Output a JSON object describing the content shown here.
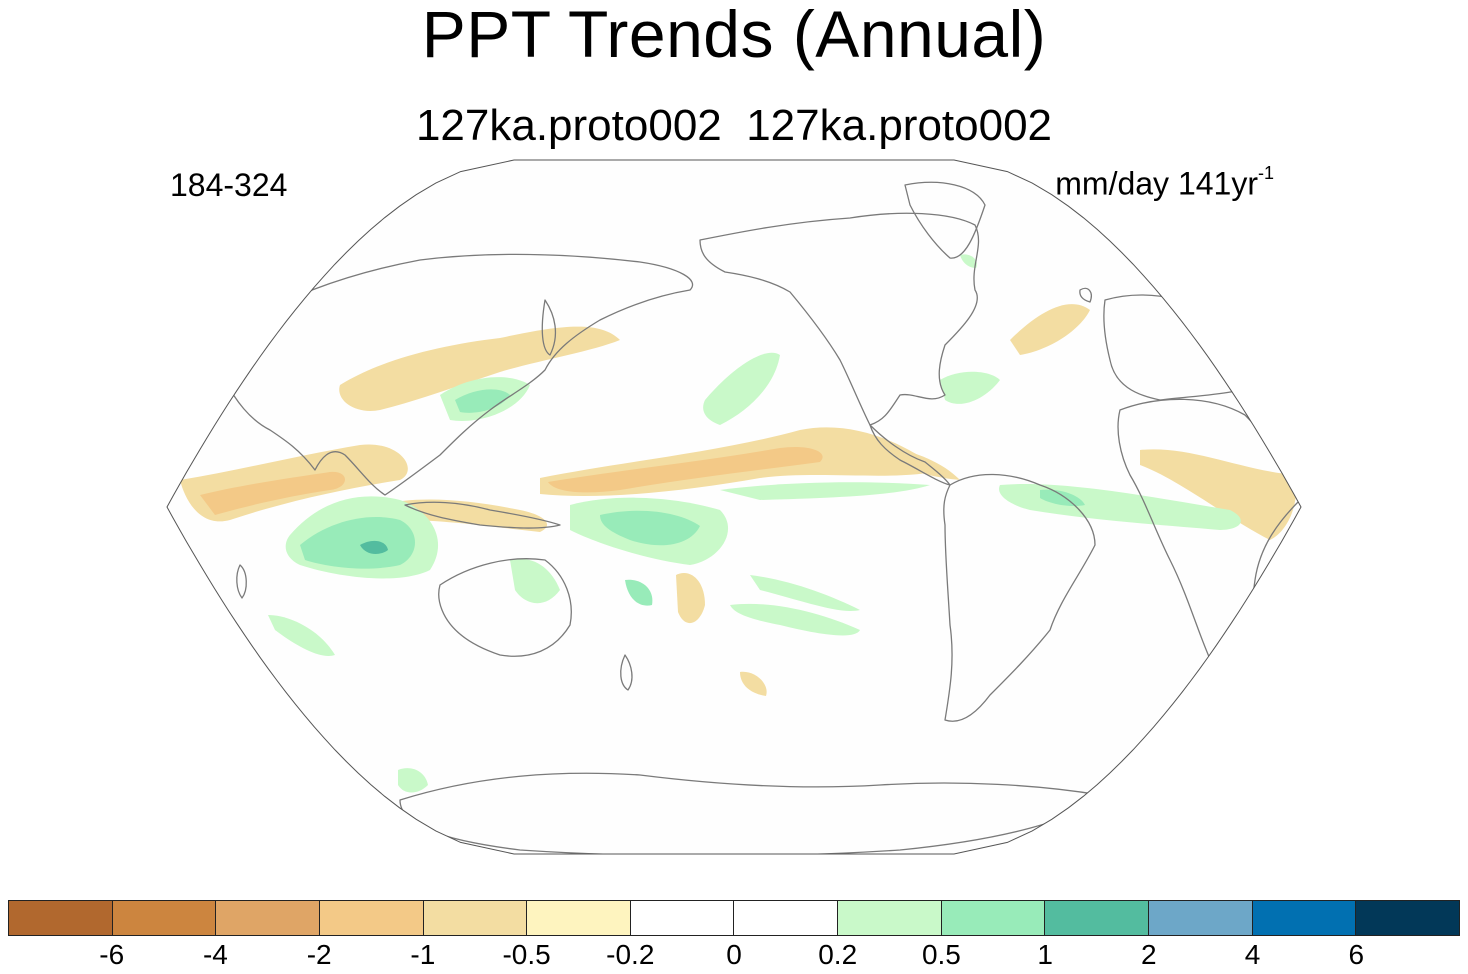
{
  "title": "PPT Trends (Annual)",
  "subtitle": "127ka.proto002  127ka.proto002",
  "left_label": "184-324",
  "units": {
    "base": "mm/day 141yr",
    "superscript": "-1"
  },
  "projection": "robinson",
  "center_longitude": 180,
  "colorbar": {
    "colors": [
      "#b1682e",
      "#cc853f",
      "#dfa566",
      "#f3c987",
      "#f3dda2",
      "#fef4bf",
      "#ffffff",
      "#ffffff",
      "#c9f9c9",
      "#98ebb9",
      "#53bc9f",
      "#6da7c8",
      "#0170b1",
      "#023858"
    ],
    "tick_labels": [
      "-6",
      "-4",
      "-2",
      "-1",
      "-0.5",
      "-0.2",
      "0",
      "0.2",
      "0.5",
      "1",
      "2",
      "4",
      "6"
    ]
  },
  "map_style": {
    "ocean": "#fefefe",
    "coastline": "#7a7a7a",
    "border": "#555555"
  }
}
